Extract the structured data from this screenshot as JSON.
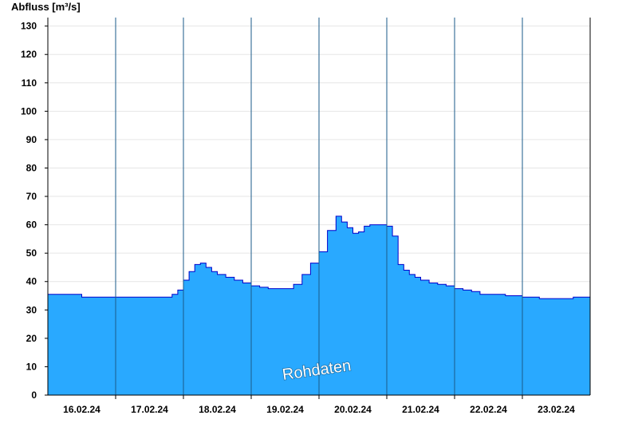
{
  "chart_data": {
    "type": "area",
    "ylabel": "Abfluss [m³/s]",
    "watermark": "Rohdaten",
    "ylim": [
      0,
      133
    ],
    "yticks": [
      0,
      10,
      20,
      30,
      40,
      50,
      60,
      70,
      80,
      90,
      100,
      110,
      120,
      130
    ],
    "xlim": [
      "2024-02-15T12:00",
      "2024-02-23T12:00"
    ],
    "day_labels": [
      "16.02.24",
      "17.02.24",
      "18.02.24",
      "19.02.24",
      "20.02.24",
      "21.02.24",
      "22.02.24",
      "23.02.24"
    ],
    "grid": true,
    "colors": {
      "fill": "#29a9ff",
      "line": "#0000cc",
      "axis": "#000000",
      "grid": "#e6e6e6"
    },
    "series": [
      {
        "x": [
          "2024-02-15T12:00",
          "2024-02-15T18:00",
          "2024-02-16T00:00",
          "2024-02-16T06:00",
          "2024-02-16T12:00",
          "2024-02-16T18:00",
          "2024-02-17T00:00",
          "2024-02-17T06:00",
          "2024-02-17T08:00",
          "2024-02-17T10:00",
          "2024-02-17T12:00",
          "2024-02-17T14:00",
          "2024-02-17T16:00",
          "2024-02-17T18:00",
          "2024-02-17T20:00",
          "2024-02-17T22:00",
          "2024-02-18T00:00",
          "2024-02-18T03:00",
          "2024-02-18T06:00",
          "2024-02-18T09:00",
          "2024-02-18T12:00",
          "2024-02-18T15:00",
          "2024-02-18T18:00",
          "2024-02-18T21:00",
          "2024-02-19T00:00",
          "2024-02-19T03:00",
          "2024-02-19T06:00",
          "2024-02-19T09:00",
          "2024-02-19T12:00",
          "2024-02-19T15:00",
          "2024-02-19T18:00",
          "2024-02-19T20:00",
          "2024-02-19T22:00",
          "2024-02-20T00:00",
          "2024-02-20T02:00",
          "2024-02-20T04:00",
          "2024-02-20T06:00",
          "2024-02-20T08:00",
          "2024-02-20T10:00",
          "2024-02-20T12:00",
          "2024-02-20T14:00",
          "2024-02-20T16:00",
          "2024-02-20T18:00",
          "2024-02-20T20:00",
          "2024-02-20T22:00",
          "2024-02-21T00:00",
          "2024-02-21T03:00",
          "2024-02-21T06:00",
          "2024-02-21T09:00",
          "2024-02-21T12:00",
          "2024-02-21T15:00",
          "2024-02-21T18:00",
          "2024-02-21T21:00",
          "2024-02-22T00:00",
          "2024-02-22T06:00",
          "2024-02-22T12:00",
          "2024-02-22T18:00",
          "2024-02-23T00:00",
          "2024-02-23T06:00",
          "2024-02-23T12:00"
        ],
        "y": [
          35.5,
          35.5,
          34.5,
          34.5,
          34.5,
          34.5,
          34.5,
          34.5,
          35.5,
          37,
          40.5,
          43.5,
          46,
          46.5,
          45,
          43.5,
          42.5,
          41.5,
          40.5,
          39.5,
          38.5,
          38,
          37.5,
          37.5,
          37.5,
          39,
          42.5,
          46.5,
          50.5,
          58,
          63,
          61,
          59,
          57,
          57.5,
          59.5,
          60,
          60,
          60,
          59.5,
          56,
          46,
          44,
          42.5,
          41.5,
          40.5,
          39.5,
          39,
          38.5,
          37.5,
          37,
          36.5,
          35.5,
          35.5,
          35,
          34.5,
          34,
          34,
          34.5,
          35
        ]
      }
    ]
  }
}
